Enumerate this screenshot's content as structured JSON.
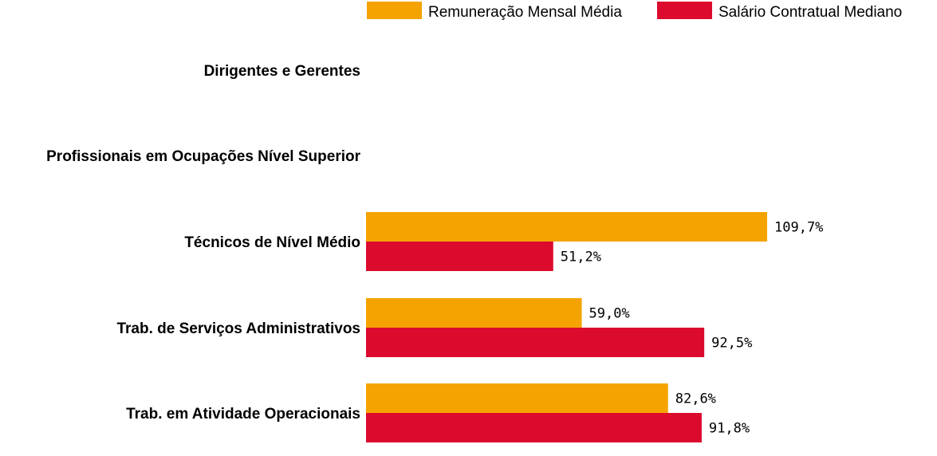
{
  "chart_data": {
    "type": "bar",
    "orientation": "horizontal",
    "categories": [
      "Dirigentes e Gerentes",
      "Profissionais em Ocupações Nível Superior",
      "Técnicos de Nível Médio",
      "Trab. de Serviços Administrativos",
      "Trab. em Atividade Operacionais"
    ],
    "series": [
      {
        "name": "Remuneração Mensal Média",
        "color": "#f5a300",
        "values": [
          null,
          null,
          109.7,
          59.0,
          82.6
        ],
        "labels": [
          "",
          "",
          "109,7%",
          "59,0%",
          "82,6%"
        ]
      },
      {
        "name": "Salário Contratual Mediano",
        "color": "#dc0a2d",
        "values": [
          null,
          null,
          51.2,
          92.5,
          91.8
        ],
        "labels": [
          "",
          "",
          "51,2%",
          "92,5%",
          "91,8%"
        ]
      }
    ],
    "xlim": [
      0,
      110
    ],
    "unit": "%",
    "grid": false,
    "legend_position": "top-right"
  }
}
